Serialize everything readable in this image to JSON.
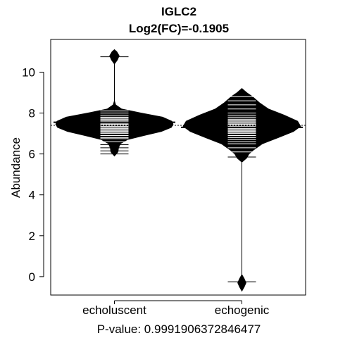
{
  "chart_data": {
    "type": "beanplot",
    "title": "IGLC2",
    "subtitle": "Log2(FC)=-0.1905",
    "ylabel": "Abundance",
    "xlabel": "P-value: 0.9991906372846477",
    "categories": [
      "echoluscent",
      "echogenic"
    ],
    "ylim": [
      -0.9,
      11.6
    ],
    "yticks": [
      0,
      2,
      4,
      6,
      8,
      10
    ],
    "overall_mean": 7.4,
    "grid": false,
    "series": [
      {
        "category": "echoluscent",
        "mean": 7.55,
        "min": 5.9,
        "max": 11.1,
        "density": [
          [
            5.9,
            0.0
          ],
          [
            6.1,
            0.06
          ],
          [
            6.3,
            0.07
          ],
          [
            6.5,
            0.1
          ],
          [
            6.7,
            0.22
          ],
          [
            6.9,
            0.5
          ],
          [
            7.1,
            0.8
          ],
          [
            7.3,
            0.97
          ],
          [
            7.45,
            1.0
          ],
          [
            7.6,
            0.98
          ],
          [
            7.8,
            0.82
          ],
          [
            8.0,
            0.45
          ],
          [
            8.2,
            0.12
          ],
          [
            8.4,
            0.02
          ],
          [
            8.6,
            0.0
          ],
          [
            10.4,
            0.0
          ],
          [
            10.6,
            0.05
          ],
          [
            10.8,
            0.08
          ],
          [
            11.0,
            0.04
          ],
          [
            11.1,
            0.0
          ]
        ],
        "observations": [
          6.0,
          6.15,
          6.3,
          6.45,
          6.6,
          6.75,
          6.8,
          6.9,
          7.0,
          7.05,
          7.1,
          7.15,
          7.2,
          7.25,
          7.3,
          7.35,
          7.4,
          7.45,
          7.5,
          7.55,
          7.6,
          7.65,
          7.7,
          7.75,
          7.8,
          7.9,
          8.0,
          8.1,
          10.75
        ]
      },
      {
        "category": "echogenic",
        "mean": 7.3,
        "min": -0.7,
        "max": 9.2,
        "density": [
          [
            -0.7,
            0.0
          ],
          [
            -0.5,
            0.04
          ],
          [
            -0.3,
            0.07
          ],
          [
            -0.1,
            0.04
          ],
          [
            0.1,
            0.0
          ],
          [
            5.6,
            0.0
          ],
          [
            5.8,
            0.08
          ],
          [
            6.0,
            0.12
          ],
          [
            6.2,
            0.2
          ],
          [
            6.5,
            0.35
          ],
          [
            6.8,
            0.62
          ],
          [
            7.1,
            0.88
          ],
          [
            7.35,
            1.0
          ],
          [
            7.6,
            0.95
          ],
          [
            7.9,
            0.72
          ],
          [
            8.2,
            0.45
          ],
          [
            8.5,
            0.3
          ],
          [
            8.8,
            0.18
          ],
          [
            9.0,
            0.08
          ],
          [
            9.2,
            0.0
          ]
        ],
        "observations": [
          -0.25,
          5.85,
          6.1,
          6.3,
          6.5,
          6.6,
          6.7,
          6.8,
          6.9,
          7.0,
          7.05,
          7.1,
          7.15,
          7.2,
          7.25,
          7.3,
          7.35,
          7.4,
          7.45,
          7.5,
          7.55,
          7.6,
          7.65,
          7.7,
          7.8,
          7.9,
          8.0,
          8.2,
          8.4,
          8.6,
          8.8
        ]
      }
    ]
  }
}
